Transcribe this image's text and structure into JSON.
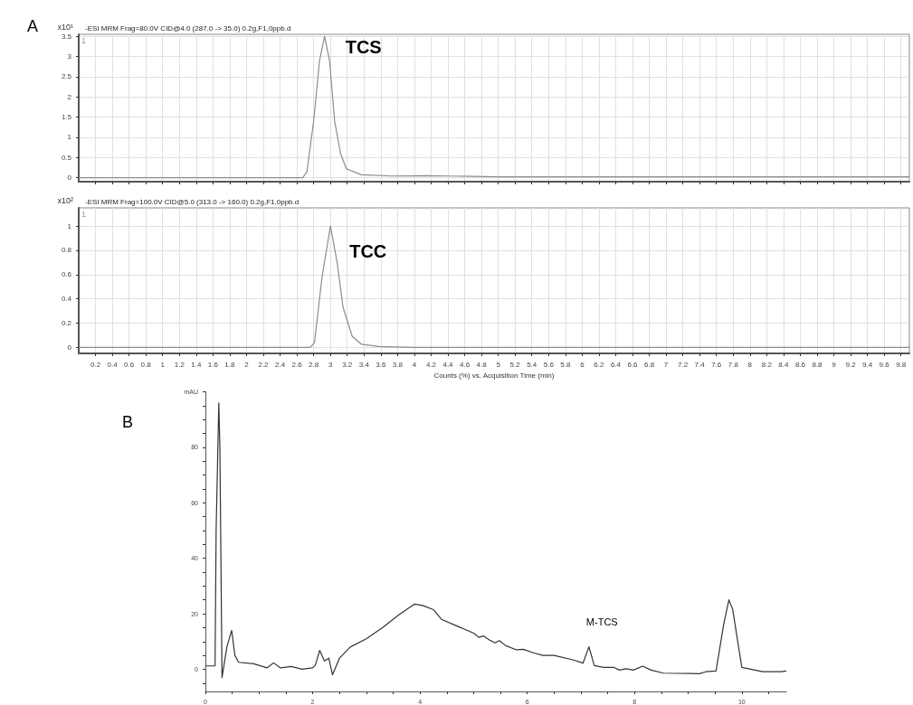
{
  "chart_data": [
    {
      "type": "line",
      "title": "-ESI MRM Frag=80.0V CID@4.0 (287.0 -> 35.0) 0.2g,F1,0ppb.d",
      "ylabel": "x10¹",
      "annotations": [
        "A",
        "1",
        {
          "text": "TCS",
          "x": 2.93,
          "y": 3.5
        }
      ],
      "x": [
        0,
        2.67,
        2.72,
        2.8,
        2.87,
        2.93,
        2.99,
        3.05,
        3.12,
        3.19,
        3.37,
        3.73,
        4.16,
        4.41,
        5,
        6,
        7,
        8,
        9,
        9.9
      ],
      "series": [
        {
          "color": "#8c8c8c",
          "values": [
            0,
            0,
            0.15,
            1.4,
            2.9,
            3.5,
            2.9,
            1.4,
            0.6,
            0.22,
            0.07,
            0.04,
            0.05,
            0.04,
            0.02,
            0.02,
            0.02,
            0.02,
            0.02,
            0.02
          ]
        }
      ],
      "xlim": [
        0,
        9.9
      ],
      "xticks": [
        0.2,
        0.4,
        0.6,
        0.8,
        1,
        1.2,
        1.4,
        1.6,
        1.8,
        2,
        2.2,
        2.4,
        2.6,
        2.8,
        3,
        3.2,
        3.4,
        3.6,
        3.8,
        4,
        4.2,
        4.4,
        4.6,
        4.8,
        5,
        5.2,
        5.4,
        5.6,
        5.8,
        6,
        6.2,
        6.4,
        6.6,
        6.8,
        7,
        7.2,
        7.4,
        7.6,
        7.8,
        8,
        8.2,
        8.4,
        8.6,
        8.8,
        9,
        9.2,
        9.4,
        9.6,
        9.8
      ],
      "ylim": [
        -0.1,
        3.55
      ],
      "yticks": [
        0,
        0.5,
        1,
        1.5,
        2,
        2.5,
        3,
        3.5
      ],
      "grid": true,
      "tick_labels": "y"
    },
    {
      "type": "line",
      "title": "-ESI MRM Frag=100.0V CID@5.0 (313.0 -> 160.0) 0.2g,F1,0ppb.d",
      "ylabel": "x10²",
      "xlabel": "Counts (%) vs. Acquisition Time (min)",
      "annotations": [
        "1",
        {
          "text": "TCC",
          "x": 3.0,
          "y": 1.0
        }
      ],
      "x": [
        0,
        2.76,
        2.81,
        2.9,
        3.0,
        3.08,
        3.15,
        3.26,
        3.37,
        3.58,
        4,
        5,
        6,
        7,
        8,
        9,
        9.9
      ],
      "series": [
        {
          "color": "#8c8c8c",
          "values": [
            0,
            0,
            0.04,
            0.58,
            1.0,
            0.7,
            0.33,
            0.09,
            0.025,
            0.007,
            0,
            0,
            0,
            0,
            0,
            0,
            0
          ]
        }
      ],
      "xlim": [
        0,
        9.9
      ],
      "xticks": [
        0.2,
        0.4,
        0.6,
        0.8,
        1,
        1.2,
        1.4,
        1.6,
        1.8,
        2,
        2.2,
        2.4,
        2.6,
        2.8,
        3,
        3.2,
        3.4,
        3.6,
        3.8,
        4,
        4.2,
        4.4,
        4.6,
        4.8,
        5,
        5.2,
        5.4,
        5.6,
        5.8,
        6,
        6.2,
        6.4,
        6.6,
        6.8,
        7,
        7.2,
        7.4,
        7.6,
        7.8,
        8,
        8.2,
        8.4,
        8.6,
        8.8,
        9,
        9.2,
        9.4,
        9.6,
        9.8
      ],
      "ylim": [
        -0.05,
        1.15
      ],
      "yticks": [
        0,
        0.2,
        0.4,
        0.6,
        0.8,
        1
      ],
      "grid": true
    },
    {
      "type": "line",
      "annotations": [
        "B",
        {
          "text": "M-TCS",
          "x": 7.15,
          "y": 8.1
        }
      ],
      "x": [
        0,
        0.18,
        0.2,
        0.25,
        0.27,
        0.31,
        0.4,
        0.49,
        0.55,
        0.62,
        0.9,
        1.15,
        1.27,
        1.4,
        1.6,
        1.8,
        2.0,
        2.05,
        2.13,
        2.22,
        2.3,
        2.37,
        2.5,
        2.7,
        3.0,
        3.3,
        3.6,
        3.9,
        4.05,
        4.25,
        4.4,
        4.7,
        5.0,
        5.1,
        5.18,
        5.3,
        5.4,
        5.48,
        5.6,
        5.8,
        5.93,
        6.1,
        6.29,
        6.5,
        6.85,
        7.04,
        7.15,
        7.25,
        7.42,
        7.61,
        7.72,
        7.84,
        7.98,
        8.15,
        8.31,
        8.54,
        9.21,
        9.33,
        9.52,
        9.66,
        9.76,
        9.83,
        10,
        10.39,
        10.73,
        10.83
      ],
      "series": [
        {
          "color": "#333333",
          "values": [
            1.2,
            1.2,
            50,
            96,
            80,
            -3,
            8,
            14,
            5,
            2.5,
            2,
            0.5,
            2.3,
            0.5,
            1,
            0,
            0.5,
            1.5,
            6.8,
            3,
            4,
            -2,
            4,
            8,
            11,
            15,
            19.5,
            23.5,
            23,
            21.5,
            18,
            15.5,
            13,
            11.5,
            12,
            10.5,
            9.5,
            10.3,
            8.5,
            7,
            7.2,
            6,
            5,
            5,
            3.4,
            2.2,
            8.1,
            1.3,
            0.7,
            0.7,
            -0.3,
            0.2,
            -0.3,
            1.1,
            -0.3,
            -1.4,
            -1.6,
            -0.9,
            -0.6,
            16,
            25,
            21.6,
            0.7,
            -0.9,
            -0.9,
            -0.6
          ]
        }
      ],
      "xlim": [
        0,
        10.83
      ],
      "xticks": [
        0,
        {
          "value": 0.5,
          "label": null
        },
        {
          "value": 1,
          "label": null
        },
        {
          "value": 1.5,
          "label": null
        },
        2,
        {
          "value": 2.5,
          "label": null
        },
        {
          "value": 3,
          "label": null
        },
        {
          "value": 3.5,
          "label": null
        },
        4,
        {
          "value": 4.5,
          "label": null
        },
        {
          "value": 5,
          "label": null
        },
        {
          "value": 5.5,
          "label": null
        },
        6,
        {
          "value": 6.5,
          "label": null
        },
        {
          "value": 7,
          "label": null
        },
        {
          "value": 7.5,
          "label": null
        },
        8,
        {
          "value": 8.5,
          "label": null
        },
        {
          "value": 9,
          "label": null
        },
        {
          "value": 9.5,
          "label": null
        },
        10,
        {
          "value": 10.5,
          "label": null
        }
      ],
      "ylim": [
        -8,
        100
      ],
      "yticks": [
        {
          "value": -5,
          "label": null
        },
        0,
        {
          "value": 5,
          "label": null
        },
        {
          "value": 10,
          "label": null
        },
        {
          "value": 15,
          "label": null
        },
        20,
        {
          "value": 25,
          "label": null
        },
        {
          "value": 30,
          "label": null
        },
        {
          "value": 35,
          "label": null
        },
        40,
        {
          "value": 45,
          "label": null
        },
        {
          "value": 50,
          "label": null
        },
        {
          "value": 55,
          "label": null
        },
        60,
        {
          "value": 65,
          "label": null
        },
        {
          "value": 70,
          "label": null
        },
        {
          "value": 75,
          "label": null
        },
        80,
        {
          "value": 85,
          "label": null
        },
        {
          "value": 90,
          "label": null
        },
        {
          "value": 95,
          "label": null
        },
        {
          "value": 100,
          "label": "mAU"
        }
      ],
      "grid": false
    }
  ]
}
